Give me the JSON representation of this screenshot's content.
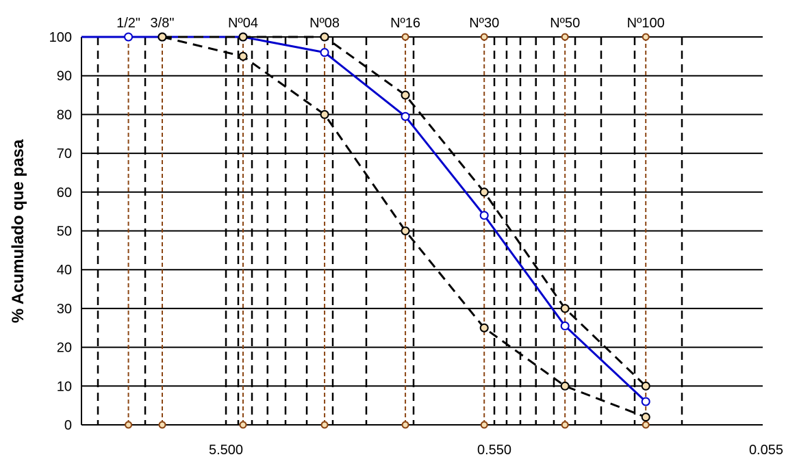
{
  "chart_data": {
    "type": "line",
    "title": "",
    "xlabel": "",
    "ylabel": "% Acumulado que pasa",
    "x_scale": "log",
    "x_reversed": true,
    "xlim": [
      19.0,
      0.055
    ],
    "ylim": [
      0,
      100
    ],
    "y_ticks": [
      "0",
      "10",
      "20",
      "30",
      "40",
      "50",
      "60",
      "70",
      "80",
      "90",
      "100"
    ],
    "x_ticks": [
      {
        "value": 5.5,
        "label": "5.500"
      },
      {
        "value": 0.55,
        "label": "0.550"
      },
      {
        "value": 0.055,
        "label": "0.055"
      }
    ],
    "grid": true,
    "sieves": [
      {
        "label": "1/2\"",
        "size": 12.7
      },
      {
        "label": "3/8\"",
        "size": 9.5
      },
      {
        "label": "Nº04",
        "size": 4.75
      },
      {
        "label": "Nº08",
        "size": 2.36
      },
      {
        "label": "Nº16",
        "size": 1.18
      },
      {
        "label": "Nº30",
        "size": 0.6
      },
      {
        "label": "Nº50",
        "size": 0.3
      },
      {
        "label": "Nº100",
        "size": 0.15
      }
    ],
    "series": [
      {
        "style": "solid",
        "color": "#0000cc",
        "x": [
          19.0,
          12.7,
          9.5,
          4.75,
          2.36,
          1.18,
          0.6,
          0.3,
          0.15
        ],
        "y": [
          100,
          100,
          100,
          100,
          96,
          79.5,
          54,
          25.5,
          6
        ]
      },
      {
        "style": "dashed",
        "color": "#000000",
        "x": [
          9.5,
          4.75,
          2.36,
          1.18,
          0.6,
          0.3,
          0.15
        ],
        "y": [
          100,
          100,
          100,
          85,
          60,
          30,
          10
        ]
      },
      {
        "style": "dashed",
        "color": "#000000",
        "x": [
          9.5,
          4.75,
          2.36,
          1.18,
          0.6,
          0.3,
          0.15
        ],
        "y": [
          100,
          95,
          80,
          50,
          25,
          10,
          2
        ]
      }
    ],
    "colors": {
      "sieve_line": "#8b4513",
      "marker_fill": "#f5deb3",
      "grid": "#000000"
    }
  }
}
